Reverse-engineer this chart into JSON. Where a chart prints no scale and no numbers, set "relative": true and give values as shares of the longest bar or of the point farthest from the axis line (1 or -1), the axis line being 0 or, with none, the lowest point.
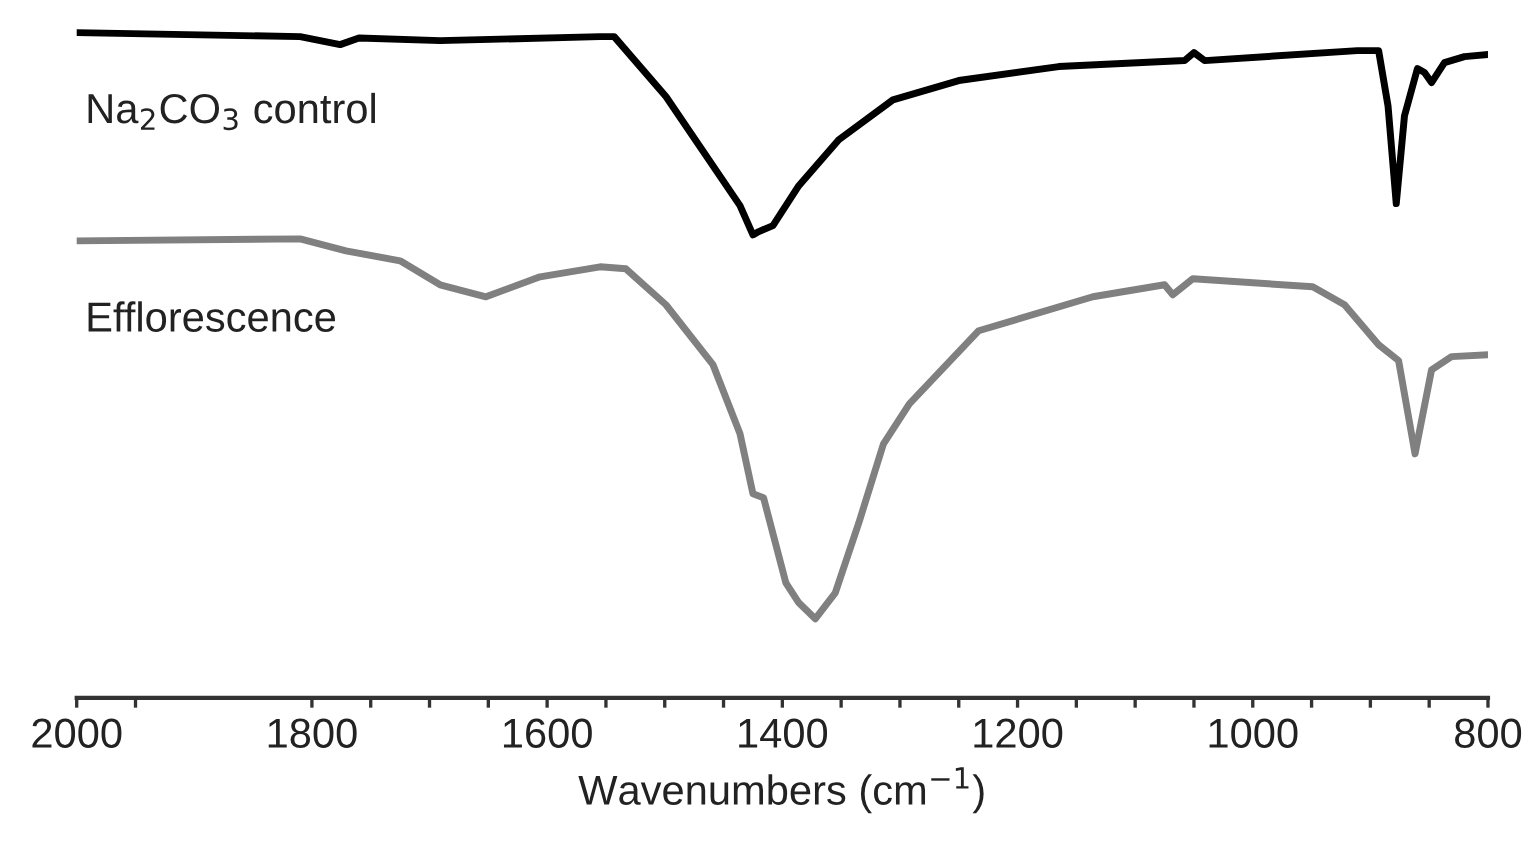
{
  "chart_data": {
    "type": "line",
    "relative": true,
    "xlabel": "Wavenumbers (cm$^{−1}$)",
    "xlim": [
      2000,
      800
    ],
    "xticks": [
      2000,
      {
        "value": 1950,
        "label": null
      },
      1800,
      {
        "value": 1750,
        "label": null
      },
      {
        "value": 1700,
        "label": null
      },
      {
        "value": 1650,
        "label": null
      },
      1600,
      {
        "value": 1550,
        "label": null
      },
      {
        "value": 1500,
        "label": null
      },
      {
        "value": 1450,
        "label": null
      },
      1400,
      {
        "value": 1350,
        "label": null
      },
      {
        "value": 1300,
        "label": null
      },
      {
        "value": 1250,
        "label": null
      },
      1200,
      {
        "value": 1150,
        "label": null
      },
      {
        "value": 1100,
        "label": null
      },
      {
        "value": 1050,
        "label": null
      },
      1000,
      {
        "value": 950,
        "label": null
      },
      {
        "value": 900,
        "label": null
      },
      {
        "value": 850,
        "label": null
      },
      800
    ],
    "grid": false,
    "legend": false,
    "marker": "none",
    "line_style": "solid",
    "annotations": [
      "Na$_{2}$CO$_{3}$ control",
      "Efflorescence"
    ],
    "series": [
      {
        "color": "#000000",
        "x": [
          2000,
          1810,
          1776,
          1760,
          1691,
          1555,
          1543,
          1499,
          1436,
          1425,
          1420,
          1408,
          1386,
          1352,
          1306,
          1250,
          1165,
          1058,
          1050,
          1041,
          911,
          893,
          885,
          878,
          871,
          860,
          854,
          848,
          837,
          820,
          800
        ],
        "values": [
          1.0,
          0.994,
          0.982,
          0.992,
          0.988,
          0.994,
          0.994,
          0.904,
          0.74,
          0.696,
          0.701,
          0.71,
          0.77,
          0.839,
          0.899,
          0.928,
          0.949,
          0.958,
          0.97,
          0.958,
          0.973,
          0.973,
          0.89,
          0.743,
          0.875,
          0.946,
          0.94,
          0.925,
          0.955,
          0.964,
          0.967
        ]
      },
      {
        "color": "#808080",
        "x": [
          2000,
          1810,
          1771,
          1725,
          1691,
          1652,
          1606,
          1555,
          1533,
          1499,
          1459,
          1436,
          1425,
          1416,
          1397,
          1386,
          1372,
          1355,
          1335,
          1314,
          1292,
          1233,
          1136,
          1075,
          1068,
          1051,
          949,
          922,
          893,
          876,
          862,
          848,
          831,
          800
        ],
        "values": [
          0.687,
          0.69,
          0.672,
          0.657,
          0.621,
          0.603,
          0.633,
          0.648,
          0.645,
          0.591,
          0.501,
          0.397,
          0.307,
          0.301,
          0.173,
          0.143,
          0.119,
          0.158,
          0.263,
          0.382,
          0.442,
          0.552,
          0.603,
          0.621,
          0.606,
          0.63,
          0.618,
          0.591,
          0.531,
          0.507,
          0.367,
          0.493,
          0.513,
          0.516
        ]
      }
    ]
  }
}
